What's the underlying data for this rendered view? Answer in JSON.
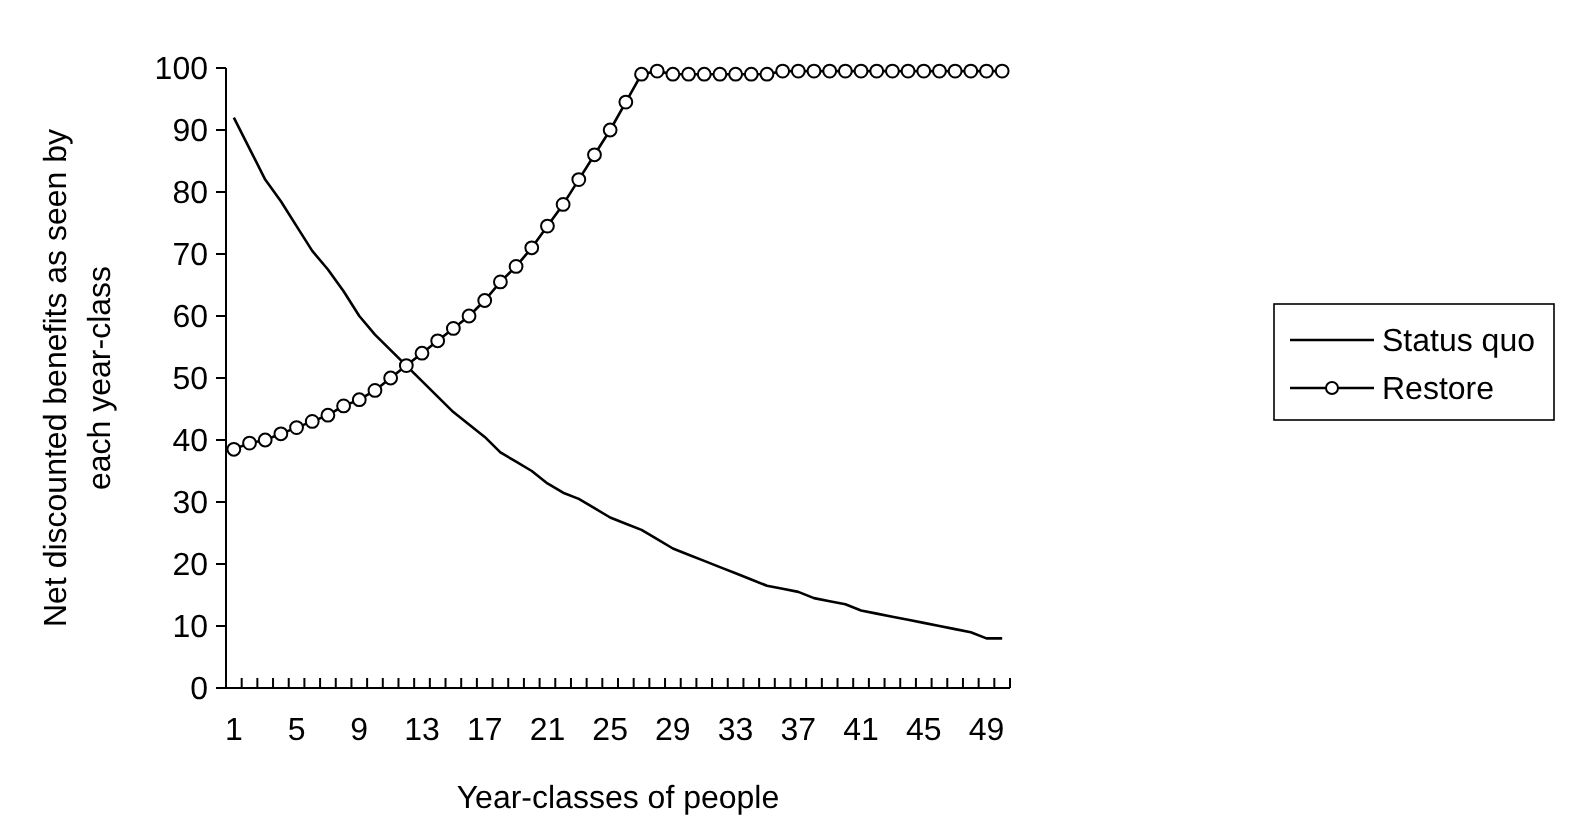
{
  "chart_data": {
    "type": "line",
    "xlabel": "Year-classes of people",
    "ylabel": "Net discounted benefits as seen by each year-class",
    "categories": [
      "1",
      null,
      null,
      null,
      "5",
      null,
      null,
      null,
      "9",
      null,
      null,
      null,
      "13",
      null,
      null,
      null,
      "17",
      null,
      null,
      null,
      "21",
      null,
      null,
      null,
      "25",
      null,
      null,
      null,
      "29",
      null,
      null,
      null,
      "33",
      null,
      null,
      null,
      "37",
      null,
      null,
      null,
      "41",
      null,
      null,
      null,
      "45",
      null,
      null,
      null,
      "49",
      null
    ],
    "ylim": [
      0,
      100
    ],
    "yticks": [
      0,
      10,
      20,
      30,
      40,
      50,
      60,
      70,
      80,
      90,
      100
    ],
    "grid": false,
    "legend": "right",
    "series": [
      {
        "name": "Status quo",
        "color": "#000000",
        "marker": "none",
        "values": [
          92,
          87,
          82,
          78.5,
          74.5,
          70.5,
          67.5,
          64,
          60,
          57,
          54.5,
          52,
          49.5,
          47,
          44.5,
          42.5,
          40.5,
          38,
          36.5,
          35,
          33,
          31.5,
          30.5,
          29,
          27.5,
          26.5,
          25.5,
          24,
          22.5,
          21.5,
          20.5,
          19.5,
          18.5,
          17.5,
          16.5,
          16,
          15.5,
          14.5,
          14,
          13.5,
          12.5,
          12,
          11.5,
          11,
          10.5,
          10,
          9.5,
          9,
          8,
          8
        ]
      },
      {
        "name": "Restore",
        "color": "#000000",
        "marker": "circle",
        "values": [
          38.5,
          39.5,
          40,
          41,
          42,
          43,
          44,
          45.5,
          46.5,
          48,
          50,
          52,
          54,
          56,
          58,
          60,
          62.5,
          65.5,
          68,
          71,
          74.5,
          78,
          82,
          86,
          90,
          94.5,
          99,
          99.5,
          99,
          99,
          99,
          99,
          99,
          99,
          99,
          99.5,
          99.5,
          99.5,
          99.5,
          99.5,
          99.5,
          99.5,
          99.5,
          99.5,
          99.5,
          99.5,
          99.5,
          99.5,
          99.5,
          99.5
        ]
      }
    ]
  }
}
